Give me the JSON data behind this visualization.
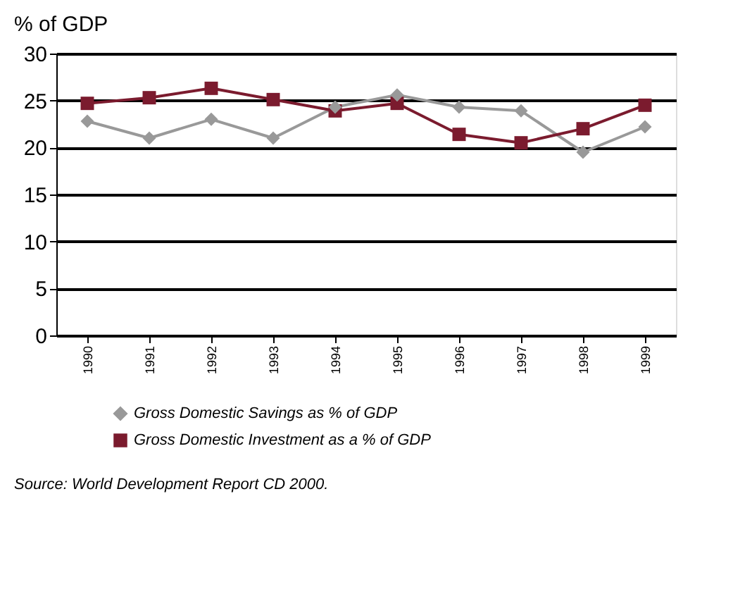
{
  "chart_data": {
    "type": "line",
    "ylabel": "% of GDP",
    "categories": [
      "1990",
      "1991",
      "1992",
      "1993",
      "1994",
      "1995",
      "1996",
      "1997",
      "1998",
      "1999"
    ],
    "series": [
      {
        "name": "Gross Domestic Savings as % of GDP",
        "color": "#999999",
        "marker": "diamond",
        "values": [
          22.8,
          21.0,
          23.0,
          21.0,
          24.3,
          25.6,
          24.3,
          23.9,
          19.5,
          22.2
        ]
      },
      {
        "name": "Gross Domestic Investment as a % of GDP",
        "color": "#7b1b2e",
        "marker": "square",
        "values": [
          24.7,
          25.3,
          26.3,
          25.1,
          23.9,
          24.7,
          21.4,
          20.5,
          22.0,
          24.5
        ]
      }
    ],
    "ylim": [
      0,
      30
    ],
    "yticks": [
      0,
      5,
      10,
      15,
      20,
      25,
      30
    ],
    "grid": "y",
    "legend": "bottom",
    "annotations": [
      "Source: World Development Report CD 2000."
    ]
  }
}
